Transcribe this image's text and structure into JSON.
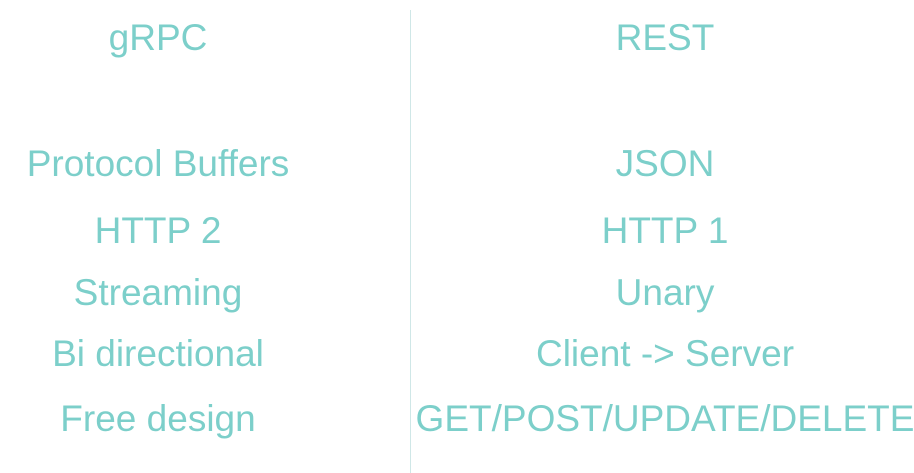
{
  "accent_color": "#7ccfca",
  "columns": [
    {
      "header": "gRPC",
      "rows": [
        "Protocol Buffers",
        "HTTP 2",
        "Streaming",
        "Bi directional",
        "Free design"
      ]
    },
    {
      "header": "REST",
      "rows": [
        "JSON",
        "HTTP 1",
        "Unary",
        "Client -> Server",
        "GET/POST/UPDATE/DELETE"
      ]
    }
  ]
}
